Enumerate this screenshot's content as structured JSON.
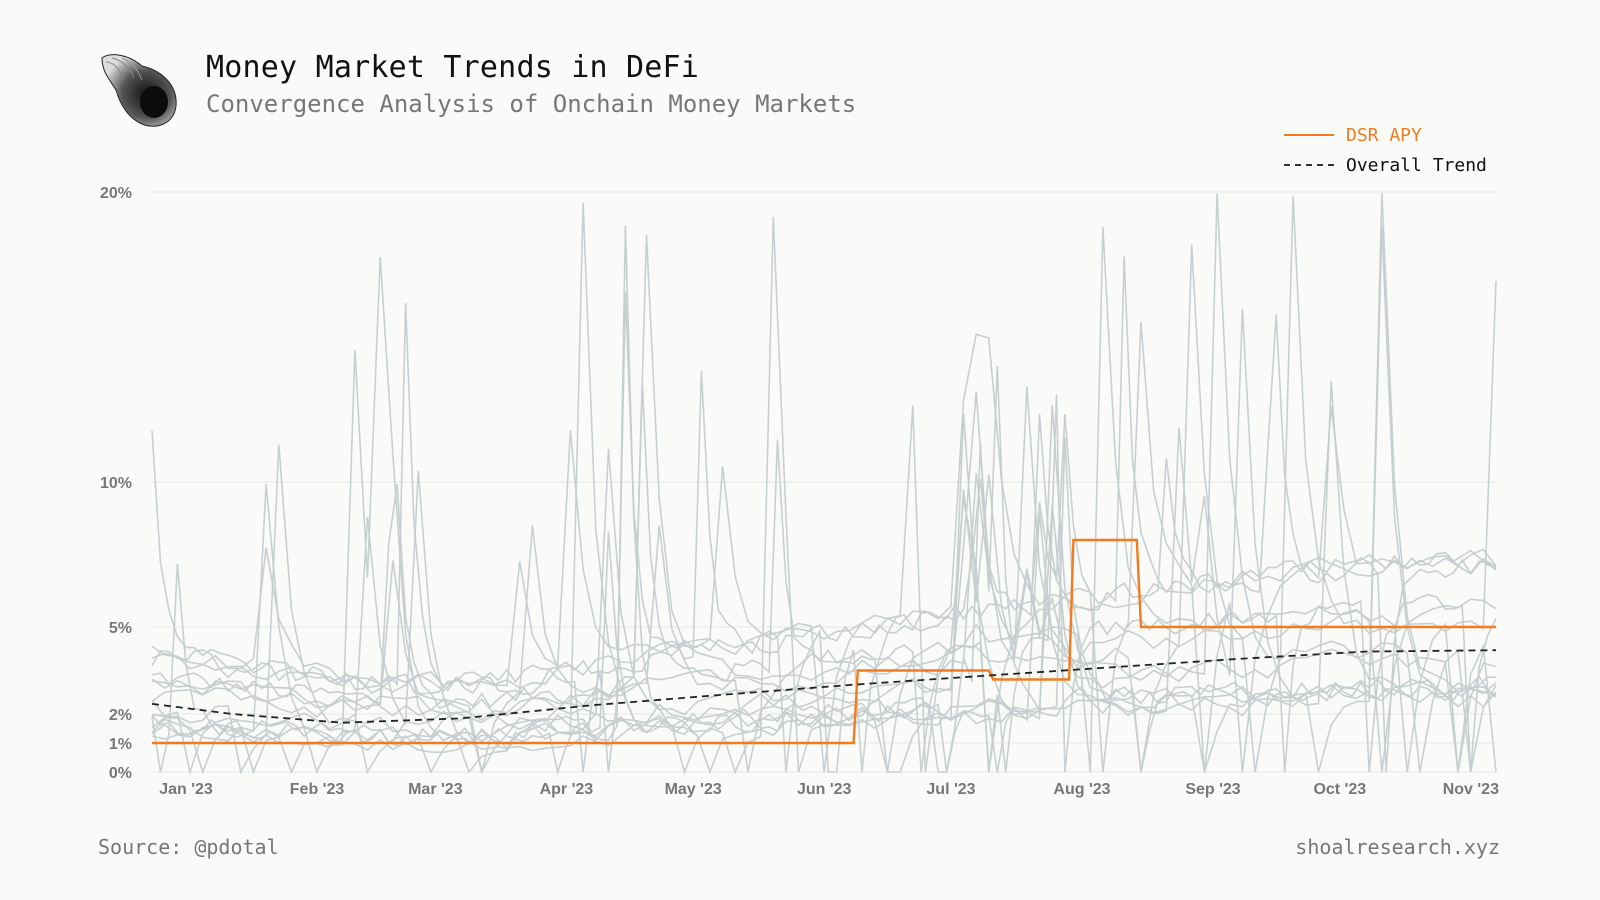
{
  "header": {
    "title": "Money Market Trends in DeFi",
    "subtitle": "Convergence Analysis of Onchain Money Markets"
  },
  "footer": {
    "source": "Source: @pdotal",
    "site": "shoalresearch.xyz"
  },
  "colors": {
    "dsr": "#f07c1f",
    "trend": "#222222",
    "markets": "#c5cccf",
    "grid": "#e6e6e6"
  },
  "chart_data": {
    "type": "line",
    "title": "Money Market Trends in DeFi",
    "subtitle": "Convergence Analysis of Onchain Money Markets",
    "xlabel": "",
    "ylabel": "",
    "x_ticks": [
      "Jan '23",
      "Feb '23",
      "Mar '23",
      "Apr '23",
      "May '23",
      "Jun '23",
      "Jul '23",
      "Aug '23",
      "Sep '23",
      "Oct '23",
      "Nov '23"
    ],
    "y_ticks": [
      "0%",
      "1%",
      "2%",
      "5%",
      "10%",
      "20%"
    ],
    "x_range": [
      "2023-01-01",
      "2023-11-15"
    ],
    "y_scale": "non-linear (0,1,2,5,10,20 spaced as shown)",
    "ylim": [
      0,
      20
    ],
    "grid": true,
    "legend": "top-right",
    "series": [
      {
        "name": "DSR APY",
        "color": "#f07c1f",
        "style": "step",
        "points": [
          [
            "2023-01-01",
            1
          ],
          [
            "2023-06-16",
            1
          ],
          [
            "2023-06-17",
            3.5
          ],
          [
            "2023-07-18",
            3.5
          ],
          [
            "2023-07-19",
            3.19
          ],
          [
            "2023-08-06",
            3.19
          ],
          [
            "2023-08-07",
            8
          ],
          [
            "2023-08-22",
            8
          ],
          [
            "2023-08-23",
            5
          ],
          [
            "2023-11-15",
            5
          ]
        ]
      },
      {
        "name": "Overall Trend",
        "color": "#222222",
        "style": "dashed",
        "points": [
          [
            "2023-01-01",
            2.35
          ],
          [
            "2023-01-20",
            2.0
          ],
          [
            "2023-02-15",
            1.7
          ],
          [
            "2023-03-15",
            1.85
          ],
          [
            "2023-04-15",
            2.3
          ],
          [
            "2023-05-15",
            2.65
          ],
          [
            "2023-06-15",
            3.0
          ],
          [
            "2023-07-15",
            3.3
          ],
          [
            "2023-08-15",
            3.6
          ],
          [
            "2023-09-15",
            3.9
          ],
          [
            "2023-10-15",
            4.15
          ],
          [
            "2023-11-15",
            4.2
          ]
        ]
      }
    ]
  }
}
